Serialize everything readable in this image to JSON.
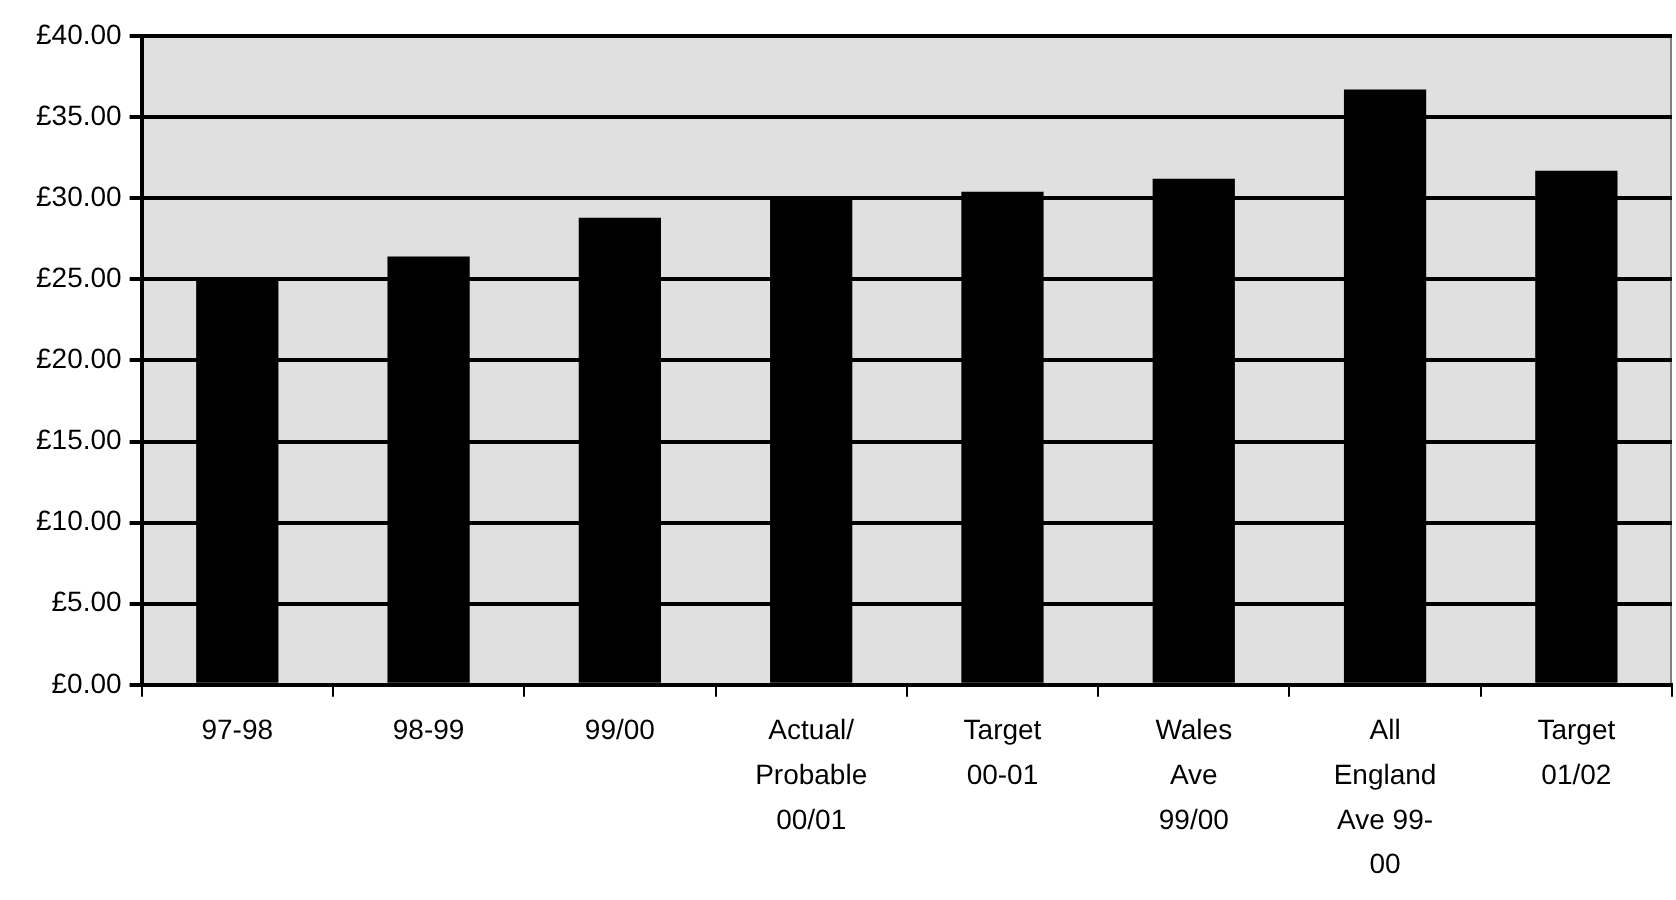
{
  "chart_data": {
    "type": "bar",
    "categories": [
      "97-98",
      "98-99",
      "99/00",
      "Actual/ Probable 00/01",
      "Target 00-01",
      "Wales Ave 99/00",
      "All England Ave 99-00",
      "Target 01/02"
    ],
    "values": [
      24.9,
      26.4,
      28.8,
      30.0,
      30.4,
      31.2,
      36.7,
      31.7
    ],
    "color": "#000000",
    "ylim": [
      0,
      40
    ],
    "yticks": [
      {
        "value": 0,
        "label": "£0.00"
      },
      {
        "value": 5,
        "label": "£5.00"
      },
      {
        "value": 10,
        "label": "£10.00"
      },
      {
        "value": 15,
        "label": "£15.00"
      },
      {
        "value": 20,
        "label": "£20.00"
      },
      {
        "value": 25,
        "label": "£25.00"
      },
      {
        "value": 30,
        "label": "£30.00"
      },
      {
        "value": 35,
        "label": "£35.00"
      },
      {
        "value": 40,
        "label": "£40.00"
      }
    ],
    "grid": "y",
    "legend": false
  }
}
